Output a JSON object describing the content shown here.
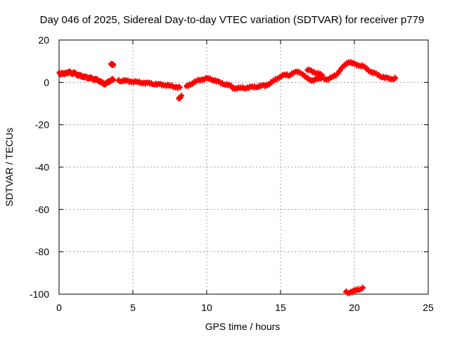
{
  "chart_data": {
    "type": "scatter",
    "title": "Day 046 of 2025, Sidereal Day-to-day VTEC variation (SDTVAR) for receiver p779",
    "xlabel": "GPS time / hours",
    "ylabel": "SDTVAR / TECUs",
    "xlim": [
      0,
      25
    ],
    "ylim": [
      -100,
      20
    ],
    "x_ticks": [
      0,
      5,
      10,
      15,
      20,
      25
    ],
    "y_ticks": [
      -100,
      -80,
      -60,
      -40,
      -20,
      0,
      20
    ],
    "grid": true,
    "marker": "plus",
    "color": "#ff0000",
    "series": [
      {
        "name": "SDTVAR",
        "points": [
          [
            0.0,
            4.5
          ],
          [
            0.1,
            4.0
          ],
          [
            0.2,
            4.6
          ],
          [
            0.3,
            3.8
          ],
          [
            0.4,
            4.2
          ],
          [
            0.5,
            4.7
          ],
          [
            0.6,
            4.3
          ],
          [
            0.7,
            5.0
          ],
          [
            0.8,
            4.6
          ],
          [
            0.9,
            4.2
          ],
          [
            1.0,
            4.5
          ],
          [
            1.1,
            4.0
          ],
          [
            1.2,
            3.8
          ],
          [
            1.3,
            3.5
          ],
          [
            1.4,
            3.2
          ],
          [
            1.5,
            3.0
          ],
          [
            1.6,
            2.8
          ],
          [
            1.7,
            2.6
          ],
          [
            1.8,
            2.5
          ],
          [
            1.9,
            2.3
          ],
          [
            2.0,
            2.2
          ],
          [
            2.1,
            2.0
          ],
          [
            2.2,
            1.8
          ],
          [
            2.3,
            1.7
          ],
          [
            2.4,
            1.5
          ],
          [
            2.5,
            1.3
          ],
          [
            2.6,
            1.0
          ],
          [
            2.7,
            0.8
          ],
          [
            2.8,
            0.4
          ],
          [
            2.9,
            0.0
          ],
          [
            3.0,
            -0.5
          ],
          [
            3.1,
            -0.8
          ],
          [
            3.2,
            -0.5
          ],
          [
            3.3,
            0.0
          ],
          [
            3.4,
            0.6
          ],
          [
            3.5,
            1.0
          ],
          [
            3.6,
            1.3
          ],
          [
            3.7,
            1.1
          ],
          [
            3.5,
            8.8
          ],
          [
            3.6,
            8.5
          ],
          [
            3.7,
            8.2
          ],
          [
            4.0,
            0.9
          ],
          [
            4.2,
            0.7
          ],
          [
            4.4,
            0.8
          ],
          [
            4.6,
            0.6
          ],
          [
            4.8,
            0.5
          ],
          [
            5.0,
            0.4
          ],
          [
            5.2,
            0.2
          ],
          [
            5.4,
            0.0
          ],
          [
            5.6,
            -0.1
          ],
          [
            5.8,
            -0.2
          ],
          [
            6.0,
            -0.4
          ],
          [
            6.2,
            -0.5
          ],
          [
            6.4,
            -0.7
          ],
          [
            6.6,
            -0.9
          ],
          [
            6.8,
            -1.0
          ],
          [
            7.0,
            -1.1
          ],
          [
            7.2,
            -1.2
          ],
          [
            7.4,
            -1.5
          ],
          [
            7.6,
            -1.8
          ],
          [
            7.8,
            -2.0
          ],
          [
            8.0,
            -2.2
          ],
          [
            8.2,
            -2.5
          ],
          [
            8.1,
            -7.8
          ],
          [
            8.2,
            -7.0
          ],
          [
            8.3,
            -6.3
          ],
          [
            8.6,
            -2.0
          ],
          [
            8.8,
            -1.2
          ],
          [
            9.0,
            -0.5
          ],
          [
            9.2,
            0.2
          ],
          [
            9.4,
            0.8
          ],
          [
            9.6,
            1.3
          ],
          [
            9.8,
            1.6
          ],
          [
            10.0,
            1.8
          ],
          [
            10.2,
            1.6
          ],
          [
            10.4,
            1.3
          ],
          [
            10.6,
            0.8
          ],
          [
            10.8,
            0.2
          ],
          [
            11.0,
            -0.4
          ],
          [
            11.2,
            -0.8
          ],
          [
            11.4,
            -1.2
          ],
          [
            11.6,
            -1.5
          ],
          [
            11.8,
            -2.8
          ],
          [
            12.0,
            -2.6
          ],
          [
            12.2,
            -2.8
          ],
          [
            12.4,
            -2.7
          ],
          [
            12.6,
            -2.6
          ],
          [
            12.8,
            -2.4
          ],
          [
            13.0,
            -2.3
          ],
          [
            13.2,
            -2.2
          ],
          [
            13.4,
            -2.0
          ],
          [
            13.6,
            -1.8
          ],
          [
            13.8,
            -1.6
          ],
          [
            14.0,
            -1.4
          ],
          [
            14.2,
            -0.8
          ],
          [
            14.4,
            0.0
          ],
          [
            14.6,
            1.0
          ],
          [
            14.8,
            2.0
          ],
          [
            15.0,
            2.8
          ],
          [
            15.2,
            3.3
          ],
          [
            15.4,
            3.5
          ],
          [
            15.6,
            3.4
          ],
          [
            15.8,
            4.2
          ],
          [
            16.0,
            4.8
          ],
          [
            16.2,
            5.0
          ],
          [
            16.4,
            4.6
          ],
          [
            16.6,
            3.0
          ],
          [
            16.8,
            2.0
          ],
          [
            17.0,
            1.2
          ],
          [
            17.2,
            1.0
          ],
          [
            17.4,
            1.4
          ],
          [
            17.6,
            1.8
          ],
          [
            17.8,
            2.2
          ],
          [
            16.8,
            6.0
          ],
          [
            17.0,
            5.5
          ],
          [
            17.2,
            5.0
          ],
          [
            17.4,
            4.6
          ],
          [
            17.6,
            4.0
          ],
          [
            17.8,
            3.4
          ],
          [
            18.0,
            1.4
          ],
          [
            18.2,
            1.6
          ],
          [
            18.4,
            2.0
          ],
          [
            18.6,
            2.8
          ],
          [
            18.8,
            3.8
          ],
          [
            19.0,
            5.5
          ],
          [
            19.2,
            7.0
          ],
          [
            19.4,
            8.5
          ],
          [
            19.6,
            9.8
          ],
          [
            19.8,
            9.2
          ],
          [
            20.0,
            8.6
          ],
          [
            20.2,
            8.3
          ],
          [
            20.4,
            8.0
          ],
          [
            20.6,
            7.6
          ],
          [
            20.8,
            6.5
          ],
          [
            21.0,
            5.5
          ],
          [
            21.2,
            4.8
          ],
          [
            21.4,
            4.2
          ],
          [
            21.6,
            3.5
          ],
          [
            21.8,
            2.8
          ],
          [
            22.0,
            2.3
          ],
          [
            22.2,
            2.0
          ],
          [
            22.4,
            1.8
          ],
          [
            22.6,
            1.7
          ],
          [
            22.8,
            1.9
          ],
          [
            19.4,
            -99.0
          ],
          [
            19.6,
            -99.3
          ],
          [
            19.8,
            -98.7
          ],
          [
            20.0,
            -98.5
          ],
          [
            20.2,
            -98.0
          ],
          [
            20.4,
            -97.5
          ],
          [
            20.6,
            -97.0
          ]
        ]
      }
    ]
  }
}
